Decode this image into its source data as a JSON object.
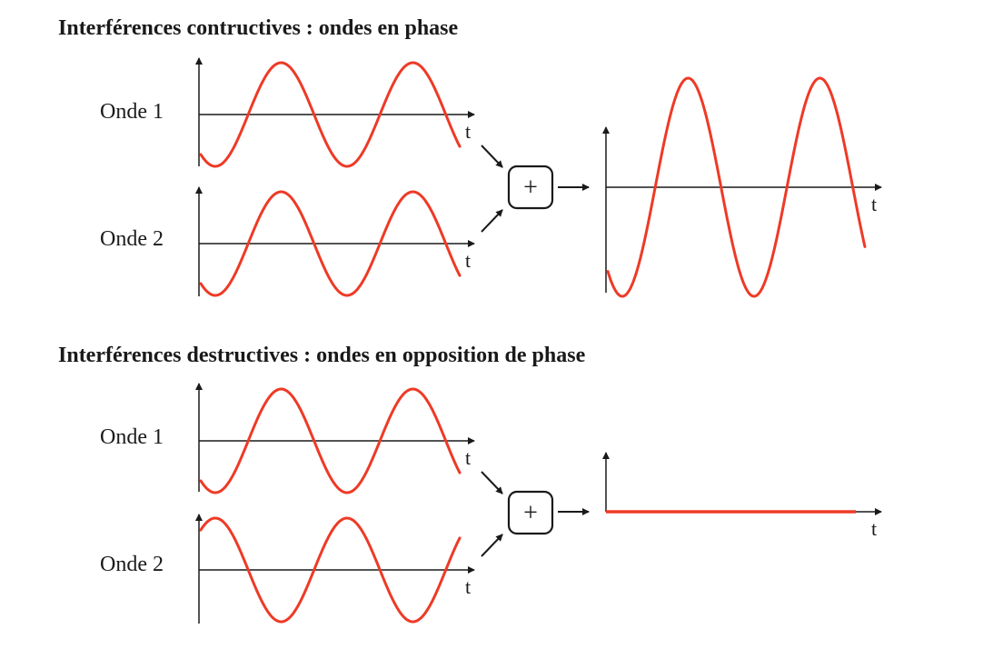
{
  "sections": [
    {
      "heading_bold": "Interférences contructives",
      "heading_rest": " : ondes en phase",
      "wave1_label": "Onde 1",
      "wave2_label": "Onde 2",
      "time_label": "t",
      "operator": "+",
      "result": "amplified"
    },
    {
      "heading_bold": "Interférences destructives",
      "heading_rest": " : ondes en opposition de phase",
      "wave1_label": "Onde 1",
      "wave2_label": "Onde 2",
      "time_label": "t",
      "operator": "+",
      "result": "flat"
    }
  ],
  "colors": {
    "wave": "#ee3a26",
    "ink": "#1a1a1a"
  }
}
